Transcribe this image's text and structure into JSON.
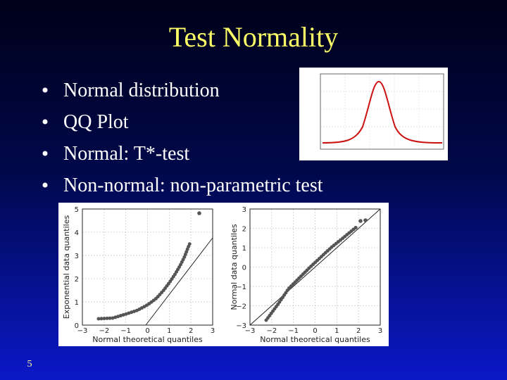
{
  "title": "Test Normality",
  "bullets": [
    "Normal distribution",
    "QQ Plot",
    "Normal: T*-test",
    "Non-normal: non-parametric test"
  ],
  "page_number": "5",
  "qq_plots": [
    {
      "xlabel": "Normal theoretical quantiles",
      "ylabel": "Exponential data quantiles",
      "xticks": [
        "−3",
        "−2",
        "−1",
        "0",
        "1",
        "2",
        "3"
      ],
      "yticks": [
        "0",
        "1",
        "2",
        "3",
        "4",
        "5"
      ]
    },
    {
      "xlabel": "Normal theoretical quantiles",
      "ylabel": "Normal data quantiles",
      "xticks": [
        "−3",
        "−2",
        "−1",
        "0",
        "1",
        "2",
        "3"
      ],
      "yticks": [
        "−3",
        "−2",
        "−1",
        "0",
        "1",
        "2",
        "3"
      ]
    }
  ]
}
